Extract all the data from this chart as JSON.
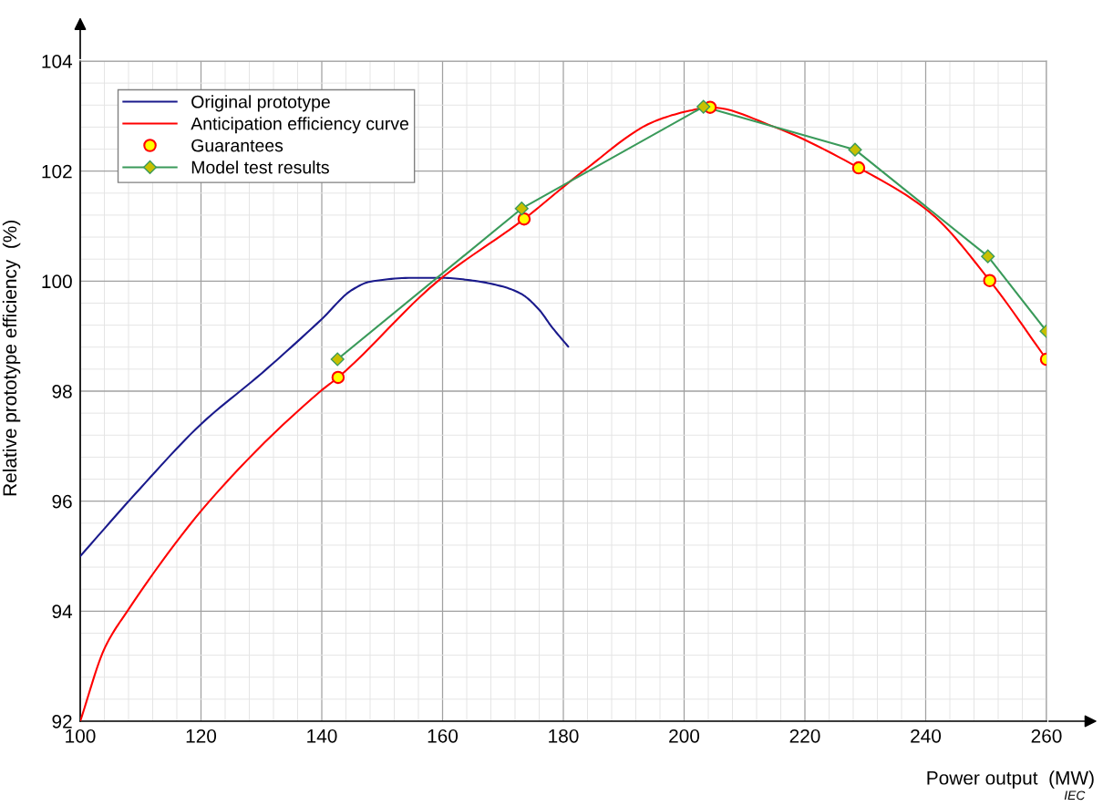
{
  "chart_data": {
    "type": "line",
    "xlabel": "Power output  (MW)",
    "ylabel": "Relative prototype efficiency  (%)",
    "xlim": [
      100,
      260
    ],
    "xticks": [
      100,
      120,
      140,
      160,
      180,
      200,
      220,
      240,
      260
    ],
    "ylim": [
      92,
      104
    ],
    "yticks": [
      92,
      94,
      96,
      98,
      100,
      102,
      104
    ],
    "grid": true,
    "legend": "top left",
    "annotations": [
      "IEC"
    ],
    "series": [
      {
        "name": "Original prototype",
        "color": "#1a1a8c",
        "marker": "none",
        "x": [
          100,
          110,
          120,
          130,
          140,
          145,
          148,
          155,
          160,
          165,
          170,
          173,
          176,
          178,
          180.8
        ],
        "values": [
          95.0,
          96.24,
          97.4,
          98.32,
          99.31,
          99.84,
          99.99,
          100.06,
          100.06,
          100.01,
          99.9,
          99.77,
          99.48,
          99.18,
          98.81
        ]
      },
      {
        "name": "Anticipation efficiency curve",
        "color": "#ff0000",
        "marker": "none",
        "x": [
          100,
          104.1,
          107.8,
          121.4,
          139.8,
          142.7,
          159.2,
          173.5,
          183.3,
          195,
          201,
          204.3,
          215,
          228.9,
          240.7,
          250.6,
          260
        ],
        "values": [
          92.0,
          93.34,
          94.0,
          96.0,
          98.0,
          98.25,
          100.0,
          101.13,
          102.0,
          102.9,
          103.1,
          103.16,
          102.8,
          102.06,
          101.25,
          100.01,
          98.58
        ]
      },
      {
        "name": "Guarantees",
        "type": "scatter",
        "color": "#ff0000",
        "marker": "circle",
        "x": [
          142.7,
          173.5,
          204.3,
          228.9,
          250.6,
          260
        ],
        "values": [
          98.25,
          101.13,
          103.16,
          102.06,
          100.01,
          98.58
        ]
      },
      {
        "name": "Model test results",
        "color": "#3a9a5a",
        "marker": "diamond",
        "x": [
          142.6,
          173.1,
          203.2,
          228.3,
          250.3,
          260
        ],
        "values": [
          98.58,
          101.32,
          103.17,
          102.39,
          100.45,
          99.09
        ]
      }
    ]
  }
}
